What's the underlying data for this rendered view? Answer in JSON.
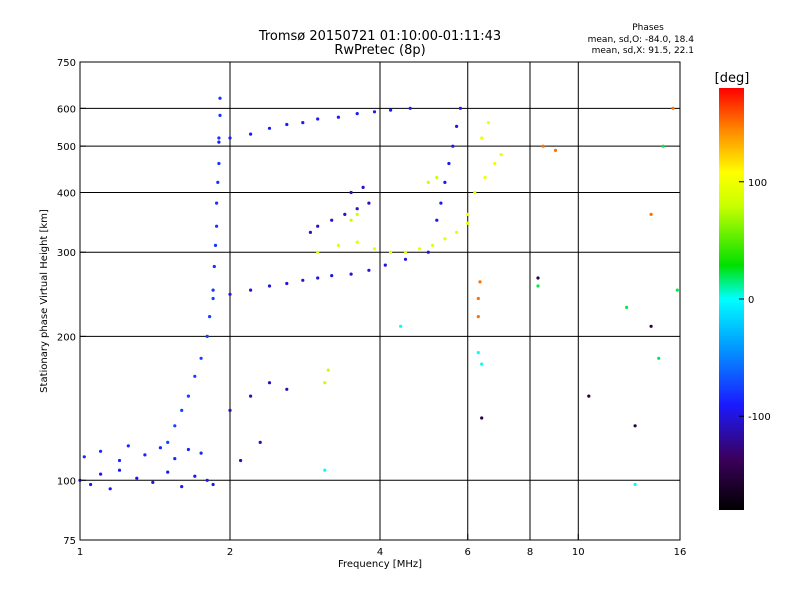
{
  "header": {
    "title_line1": "Tromsø 20150721 01:10:00-01:11:43",
    "title_line2": "RwPretec (8p)",
    "stats_heading": "Phases",
    "stats_o": "mean, sd,O: -84.0, 18.4",
    "stats_x": "mean, sd,X:  91.5, 22.1"
  },
  "colorbar": {
    "label": "[deg]",
    "ticks": [
      "100",
      "0",
      "-100"
    ],
    "range": [
      -180,
      180
    ]
  },
  "chart_data": {
    "type": "scatter",
    "title": "Tromsø 20150721 01:10:00-01:11:43",
    "subtitle": "RwPretec (8p)",
    "xlabel": "Frequency [MHz]",
    "ylabel": "Stationary phase Virtual Height [km]",
    "xscale": "log",
    "yscale": "log",
    "xlim": [
      1,
      16
    ],
    "ylim": [
      75,
      750
    ],
    "x_ticks": [
      "1",
      "2",
      "4",
      "6",
      "8",
      "10",
      "16"
    ],
    "y_ticks": [
      "75",
      "100",
      "200",
      "300",
      "400",
      "500",
      "600",
      "750"
    ],
    "x_gridlines": [
      2,
      4,
      6,
      8,
      10
    ],
    "y_gridlines": [
      100,
      200,
      300,
      400,
      500,
      600
    ],
    "color_quantity": "phase [deg]",
    "series": [
      {
        "phase": -95,
        "x": [
          1.0,
          1.05,
          1.1,
          1.15,
          1.2,
          1.3,
          1.4,
          1.5,
          1.6,
          1.7,
          1.8,
          1.85
        ],
        "y": [
          100,
          98,
          103,
          96,
          105,
          101,
          99,
          104,
          97,
          102,
          100,
          98
        ]
      },
      {
        "phase": -85,
        "x": [
          1.02,
          1.1,
          1.2,
          1.25,
          1.35,
          1.45,
          1.55,
          1.65,
          1.75
        ],
        "y": [
          112,
          115,
          110,
          118,
          113,
          117,
          111,
          116,
          114
        ]
      },
      {
        "phase": -75,
        "x": [
          1.5,
          1.55,
          1.6,
          1.65,
          1.7,
          1.75,
          1.8,
          1.82,
          1.85
        ],
        "y": [
          120,
          130,
          140,
          150,
          165,
          180,
          200,
          220,
          240
        ]
      },
      {
        "phase": -80,
        "x": [
          1.85,
          1.86,
          1.87,
          1.88,
          1.88,
          1.89,
          1.9,
          1.9,
          1.91,
          1.91
        ],
        "y": [
          250,
          280,
          310,
          340,
          380,
          420,
          460,
          520,
          580,
          630
        ]
      },
      {
        "phase": -90,
        "x": [
          1.9,
          2.0,
          2.2,
          2.4,
          2.6,
          2.8,
          3.0,
          3.3,
          3.6,
          3.9,
          4.2,
          4.6
        ],
        "y": [
          510,
          520,
          530,
          545,
          555,
          560,
          570,
          575,
          585,
          590,
          595,
          600
        ]
      },
      {
        "phase": -100,
        "x": [
          2.0,
          2.2,
          2.4,
          2.6,
          2.8,
          3.0,
          3.2,
          3.5,
          3.8,
          4.1,
          4.5,
          5.0
        ],
        "y": [
          245,
          250,
          255,
          258,
          262,
          265,
          268,
          270,
          275,
          282,
          290,
          300
        ]
      },
      {
        "phase": -105,
        "x": [
          2.9,
          3.0,
          3.2,
          3.4,
          3.6,
          3.8,
          3.5,
          3.7
        ],
        "y": [
          330,
          340,
          350,
          360,
          370,
          380,
          400,
          410
        ]
      },
      {
        "phase": -95,
        "x": [
          5.2,
          5.3,
          5.4,
          5.5,
          5.6,
          5.7,
          5.8
        ],
        "y": [
          350,
          380,
          420,
          460,
          500,
          550,
          600
        ]
      },
      {
        "phase": -110,
        "x": [
          2.0,
          2.2,
          2.4,
          2.6,
          2.3,
          2.1
        ],
        "y": [
          140,
          150,
          160,
          155,
          120,
          110
        ]
      },
      {
        "phase": 95,
        "x": [
          3.0,
          3.3,
          3.6,
          3.9,
          4.2,
          4.5,
          4.8,
          5.1,
          5.4,
          5.7,
          6.0
        ],
        "y": [
          300,
          310,
          315,
          305,
          300,
          300,
          305,
          310,
          320,
          330,
          345
        ]
      },
      {
        "phase": 100,
        "x": [
          6.0,
          6.2,
          6.5,
          6.8,
          7.0,
          6.4,
          6.6
        ],
        "y": [
          360,
          400,
          430,
          460,
          480,
          520,
          560
        ]
      },
      {
        "phase": 80,
        "x": [
          3.5,
          3.6,
          3.1,
          3.15,
          5.0,
          5.2
        ],
        "y": [
          350,
          360,
          160,
          170,
          420,
          430
        ]
      },
      {
        "phase": 150,
        "x": [
          6.3,
          6.3,
          6.35,
          8.5,
          9.0,
          14.0,
          15.5
        ],
        "y": [
          220,
          240,
          260,
          500,
          490,
          360,
          600
        ]
      },
      {
        "phase": 20,
        "x": [
          8.3,
          12.5,
          14.5,
          15.8,
          14.8
        ],
        "y": [
          255,
          230,
          180,
          250,
          500
        ]
      },
      {
        "phase": 0,
        "x": [
          3.1,
          4.4,
          13.0,
          6.3,
          6.4
        ],
        "y": [
          105,
          210,
          98,
          185,
          175
        ]
      },
      {
        "phase": -150,
        "x": [
          10.5,
          13.0,
          14.0,
          6.4,
          8.3
        ],
        "y": [
          150,
          130,
          210,
          135,
          265
        ]
      }
    ]
  }
}
